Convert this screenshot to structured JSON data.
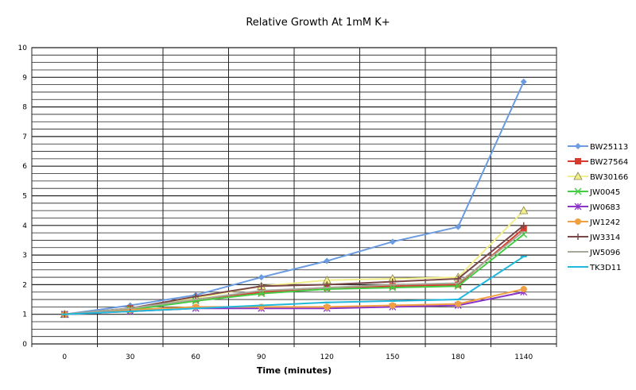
{
  "chart_data": {
    "type": "line",
    "title": "Relative Growth At 1mM K+",
    "xlabel": "Time (minutes)",
    "ylabel": "",
    "categories": [
      "0",
      "30",
      "60",
      "90",
      "120",
      "150",
      "180",
      "1140"
    ],
    "ylim": [
      0,
      10
    ],
    "yticks": [
      0,
      1,
      2,
      3,
      4,
      5,
      6,
      7,
      8,
      9,
      10
    ],
    "grid": true,
    "legend": "right",
    "series": [
      {
        "name": "BW25113",
        "color": "#6b9be0",
        "marker": "diamond",
        "values": [
          1,
          1.3,
          1.65,
          2.25,
          2.8,
          3.45,
          3.95,
          8.85
        ]
      },
      {
        "name": "BW27564",
        "color": "#d83a2e",
        "marker": "square",
        "values": [
          1,
          1.2,
          1.5,
          1.75,
          1.9,
          1.95,
          2.0,
          3.9
        ]
      },
      {
        "name": "BW30166",
        "color": "#f2ee8a",
        "marker": "triangle",
        "values": [
          1,
          1.2,
          1.55,
          1.95,
          2.15,
          2.2,
          2.25,
          4.5
        ]
      },
      {
        "name": "JW0045",
        "color": "#44cc44",
        "marker": "x",
        "values": [
          1,
          1.15,
          1.45,
          1.7,
          1.85,
          1.9,
          1.95,
          3.7
        ]
      },
      {
        "name": "JW0683",
        "color": "#8a35c8",
        "marker": "star",
        "values": [
          1,
          1.1,
          1.2,
          1.2,
          1.2,
          1.25,
          1.3,
          1.75
        ]
      },
      {
        "name": "JW1242",
        "color": "#f0a040",
        "marker": "circle",
        "values": [
          1,
          1.15,
          1.25,
          1.25,
          1.25,
          1.3,
          1.35,
          1.85
        ]
      },
      {
        "name": "JW3314",
        "color": "#7a4848",
        "marker": "plus",
        "values": [
          1,
          1.2,
          1.6,
          1.95,
          2.0,
          2.1,
          2.2,
          4.0
        ]
      },
      {
        "name": "JW5096",
        "color": "#a8a898",
        "marker": "none",
        "values": [
          1,
          1.2,
          1.5,
          1.8,
          1.9,
          2.0,
          2.05,
          3.8
        ]
      },
      {
        "name": "TK3D11",
        "color": "#22b8dc",
        "marker": "dash",
        "values": [
          1,
          1.1,
          1.2,
          1.3,
          1.4,
          1.45,
          1.5,
          2.95
        ]
      }
    ]
  }
}
